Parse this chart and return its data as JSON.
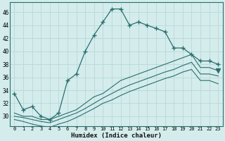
{
  "xlabel": "Humidex (Indice chaleur)",
  "bg_color": "#d4ecec",
  "grid_color": "#b8d8d8",
  "line_color": "#2a6e6e",
  "x_hours": [
    0,
    1,
    2,
    3,
    4,
    5,
    6,
    7,
    8,
    9,
    10,
    11,
    12,
    13,
    14,
    15,
    16,
    17,
    18,
    19,
    20,
    21,
    22,
    23
  ],
  "humidex_main": [
    33.5,
    31.0,
    31.5,
    30.0,
    29.5,
    30.5,
    35.5,
    36.5,
    40.0,
    42.5,
    44.5,
    46.5,
    46.5,
    44.0,
    44.5,
    44.0,
    43.5,
    43.0,
    40.5,
    40.5,
    39.5,
    38.5,
    38.5,
    38.0
  ],
  "diag1": [
    30.5,
    30.0,
    30.0,
    29.5,
    29.5,
    30.0,
    30.5,
    31.0,
    32.0,
    33.0,
    33.5,
    34.5,
    35.5,
    36.0,
    36.5,
    37.0,
    37.5,
    38.0,
    38.5,
    39.0,
    39.5,
    37.5,
    37.5,
    37.0
  ],
  "diag2": [
    30.0,
    29.8,
    29.5,
    29.2,
    29.0,
    29.5,
    30.0,
    30.5,
    31.2,
    32.0,
    32.8,
    33.5,
    34.2,
    34.8,
    35.3,
    35.8,
    36.3,
    36.8,
    37.2,
    37.8,
    38.3,
    36.5,
    36.5,
    36.2
  ],
  "diag3": [
    29.5,
    29.2,
    28.8,
    28.5,
    28.3,
    28.8,
    29.2,
    29.8,
    30.5,
    31.2,
    32.0,
    32.5,
    33.2,
    33.8,
    34.3,
    34.8,
    35.3,
    35.8,
    36.2,
    36.8,
    37.2,
    35.5,
    35.5,
    35.0
  ],
  "ylim": [
    28.5,
    47.5
  ],
  "yticks": [
    30,
    32,
    34,
    36,
    38,
    40,
    42,
    44,
    46
  ],
  "xticks": [
    0,
    1,
    2,
    3,
    4,
    5,
    6,
    7,
    8,
    9,
    10,
    11,
    12,
    13,
    14,
    15,
    16,
    17,
    18,
    19,
    20,
    21,
    22,
    23
  ]
}
